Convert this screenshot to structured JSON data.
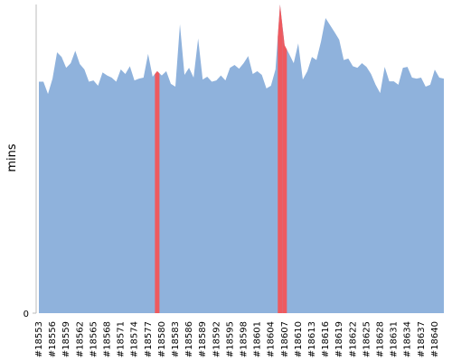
{
  "chart_data": {
    "type": "area",
    "y_label": "mins",
    "categories": [
      "#18553",
      null,
      null,
      "#18556",
      null,
      null,
      "#18559",
      null,
      null,
      "#18562",
      null,
      null,
      "#18565",
      null,
      null,
      "#18568",
      null,
      null,
      "#18571",
      null,
      null,
      "#18574",
      null,
      null,
      "#18577",
      null,
      null,
      "#18580",
      null,
      null,
      "#18583",
      null,
      null,
      "#18586",
      null,
      null,
      "#18589",
      null,
      null,
      "#18592",
      null,
      null,
      "#18595",
      null,
      null,
      "#18598",
      null,
      null,
      "#18601",
      null,
      null,
      "#18604",
      null,
      null,
      "#18607",
      null,
      null,
      "#18610",
      null,
      null,
      "#18613",
      null,
      null,
      "#18616",
      null,
      null,
      "#18619",
      null,
      null,
      "#18622",
      null,
      null,
      "#18625",
      null,
      null,
      "#18628",
      null,
      null,
      "#18631",
      null,
      null,
      "#18634",
      null,
      null,
      "#18637",
      null,
      null,
      "#18640",
      null,
      null
    ],
    "series": [
      {
        "color": "#8fb2dc",
        "values": [
          75,
          75,
          71,
          76,
          84.5,
          83,
          79.5,
          81,
          85,
          80.7,
          79,
          75,
          75.4,
          73.7,
          78,
          77,
          76.3,
          75,
          79,
          77.5,
          80,
          75.4,
          76,
          76.3,
          84,
          76.6,
          78.4,
          77,
          78.4,
          74.3,
          73.4,
          93.6,
          77.2,
          79.5,
          76.3,
          89,
          75.7,
          76.6,
          75,
          75.4,
          77,
          75.4,
          79.5,
          80.4,
          79.2,
          81,
          83.3,
          77.5,
          78.4,
          77.2,
          72.8,
          73.7,
          79,
          100,
          86.8,
          84,
          81,
          87.4,
          75.7,
          78.4,
          83,
          82,
          88,
          95.6,
          93.3,
          91,
          88.6,
          82,
          82.5,
          80,
          79.5,
          81,
          79.8,
          77.5,
          74,
          71.3,
          79.8,
          75.1,
          75.1,
          74,
          79.5,
          79.8,
          76.3,
          76,
          76.3,
          73.4,
          74,
          78.9,
          76.3,
          76
        ]
      }
    ],
    "highlight": [
      26,
      53,
      54
    ],
    "highlight_color": "#ee5a5f",
    "ylim": [
      0,
      100
    ],
    "yticks": [
      0
    ]
  }
}
